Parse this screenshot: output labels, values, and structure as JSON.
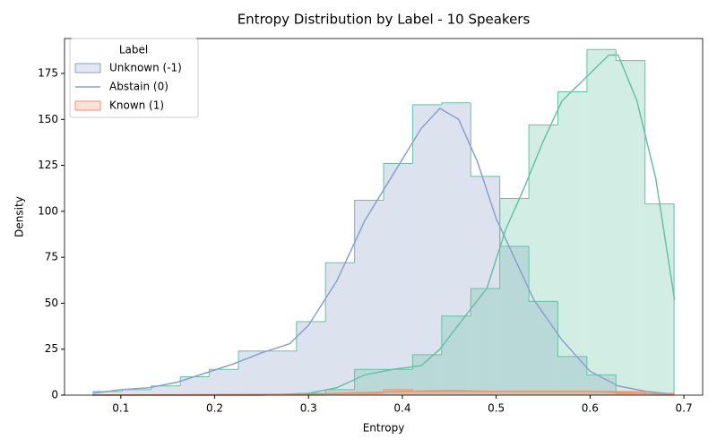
{
  "chart_data": {
    "type": "histogram",
    "title": "Entropy Distribution by Label - 10 Speakers",
    "xlabel": "Entropy",
    "ylabel": "Density",
    "xlim": [
      0.04,
      0.72
    ],
    "xticks": [
      0.1,
      0.2,
      0.3,
      0.4,
      0.5,
      0.6,
      0.7
    ],
    "ylim": [
      0,
      194
    ],
    "yticks": [
      0,
      25,
      50,
      75,
      100,
      125,
      150,
      175
    ],
    "bins": [
      0.0705,
      0.1015,
      0.1324,
      0.1634,
      0.1943,
      0.2253,
      0.2562,
      0.2872,
      0.3181,
      0.3491,
      0.38,
      0.411,
      0.4419,
      0.4729,
      0.5038,
      0.5348,
      0.5657,
      0.5967,
      0.6276,
      0.6586,
      0.6895
    ],
    "series": [
      {
        "color": "#8da0cb",
        "edgecolor": "#66c2a5",
        "values": [
          2,
          3,
          5,
          10,
          14,
          24,
          24,
          40,
          72,
          106,
          126,
          158,
          159,
          119,
          81,
          51,
          21,
          11,
          1,
          0
        ],
        "kde_x": [
          0.07,
          0.1,
          0.13,
          0.16,
          0.19,
          0.22,
          0.25,
          0.28,
          0.3,
          0.33,
          0.36,
          0.39,
          0.42,
          0.44,
          0.46,
          0.48,
          0.5,
          0.52,
          0.54,
          0.57,
          0.6,
          0.63,
          0.66,
          0.69
        ],
        "kde_y": [
          1,
          3,
          4,
          7,
          12,
          17,
          23,
          28,
          38,
          62,
          95,
          120,
          145,
          156,
          150,
          127,
          96,
          74,
          52,
          30,
          13,
          5,
          2,
          0.5
        ]
      },
      {
        "color": "#66c2a5",
        "edgecolor": "#66c2a5",
        "values": [
          0,
          0,
          0,
          0,
          0,
          0,
          0,
          1,
          3,
          14,
          14,
          22,
          43,
          58,
          107,
          147,
          165,
          188,
          182,
          104
        ],
        "kde_x": [
          0.07,
          0.25,
          0.3,
          0.33,
          0.36,
          0.39,
          0.42,
          0.44,
          0.47,
          0.49,
          0.51,
          0.53,
          0.55,
          0.57,
          0.6,
          0.62,
          0.63,
          0.65,
          0.67,
          0.69
        ],
        "kde_y": [
          0,
          0,
          1,
          4,
          11,
          14,
          16,
          25,
          45,
          58,
          90,
          113,
          138,
          160,
          175,
          185,
          185,
          160,
          118,
          52
        ]
      },
      {
        "color": "#fc8d62",
        "edgecolor": "#fc8d62",
        "values": [
          0,
          0,
          0,
          0,
          0,
          0,
          0,
          0,
          1,
          1,
          3,
          2,
          2,
          2,
          2,
          2,
          2,
          2,
          2,
          1
        ],
        "kde_x": [
          0.07,
          0.3,
          0.4,
          0.45,
          0.5,
          0.6,
          0.69
        ],
        "kde_y": [
          0,
          0.5,
          2,
          2.5,
          2,
          2,
          0.5
        ]
      }
    ],
    "legend": {
      "title": "Label",
      "position": "upper left",
      "entries": [
        {
          "label": "Unknown (-1)",
          "marker": "patch",
          "color": "#8da0cb"
        },
        {
          "label": "Abstain (0)",
          "marker": "line",
          "color": "#8da0cb"
        },
        {
          "label": "Known (1)",
          "marker": "patch",
          "color": "#fc8d62"
        }
      ]
    }
  }
}
